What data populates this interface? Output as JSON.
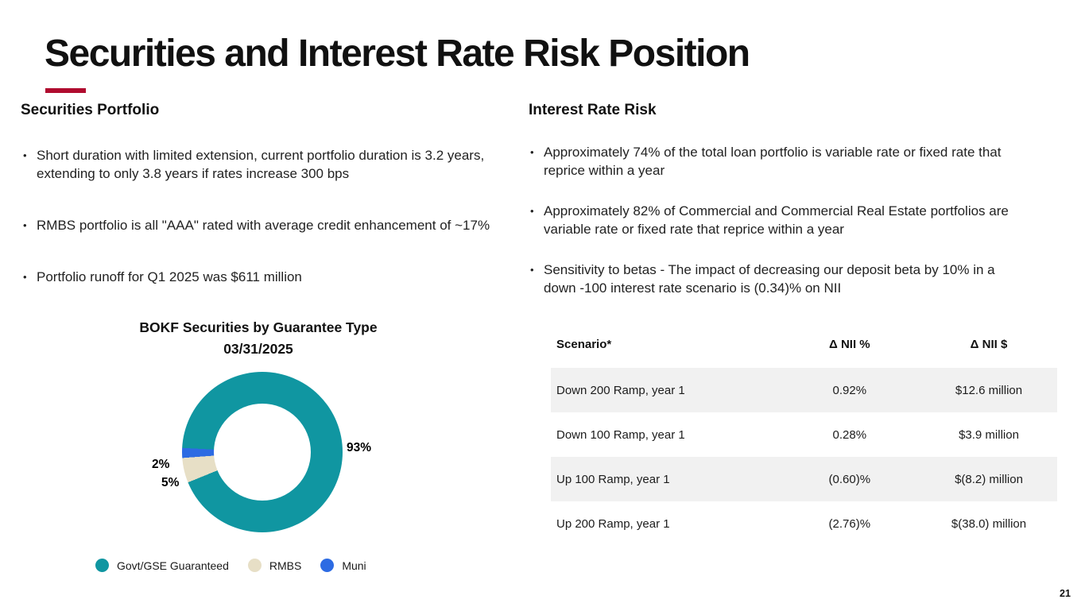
{
  "page": {
    "number": "21",
    "accent_color": "#B00C2F",
    "background_color": "#FFFFFF"
  },
  "title": "Securities and Interest Rate Risk Position",
  "left_section": {
    "heading": "Securities Portfolio",
    "bullets": [
      "Short duration with limited extension, current portfolio duration is 3.2 years, extending to only 3.8 years if rates increase 300 bps",
      "RMBS portfolio is all \"AAA\" rated with average credit enhancement of  ~17%",
      "Portfolio runoff for Q1 2025 was $611 million"
    ]
  },
  "right_section": {
    "heading": "Interest Rate Risk",
    "bullets": [
      "Approximately 74% of the total loan portfolio is variable rate or fixed rate that reprice within a year",
      "Approximately 82% of Commercial and Commercial Real Estate portfolios are variable rate or fixed rate that reprice within a year",
      "Sensitivity to betas - The impact of decreasing our deposit beta by 10% in a down -100 interest rate scenario is (0.34)% on NII"
    ]
  },
  "chart_data": {
    "type": "pie",
    "donut": true,
    "title": "BOKF Securities by Guarantee Type",
    "subtitle": "03/31/2025",
    "labels": [
      "Govt/GSE Guaranteed",
      "RMBS",
      "Muni"
    ],
    "values": [
      93,
      5,
      2
    ],
    "unit": "%",
    "data_labels": [
      "93%",
      "5%",
      "2%"
    ],
    "colors": [
      "#1096A1",
      "#E7DFC6",
      "#2D6BE3"
    ],
    "start_angle_deg": 273,
    "legend_position": "bottom"
  },
  "table": {
    "stripe_color": "#F1F1F1",
    "headers": [
      "Scenario*",
      "Δ NII %",
      "Δ NII $"
    ],
    "rows": [
      [
        "Down 200 Ramp, year 1",
        "0.92%",
        "$12.6 million"
      ],
      [
        "Down 100 Ramp, year 1",
        "0.28%",
        "$3.9 million"
      ],
      [
        "Up 100 Ramp, year 1",
        "(0.60)%",
        "$(8.2) million"
      ],
      [
        "Up 200 Ramp, year 1",
        "(2.76)%",
        "$(38.0) million"
      ]
    ]
  }
}
